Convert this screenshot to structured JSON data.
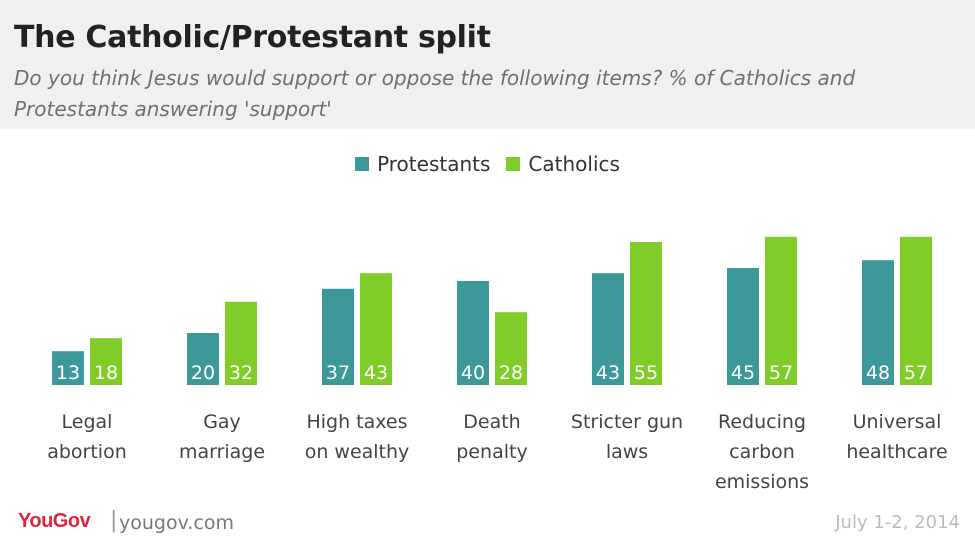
{
  "chart_data": {
    "type": "bar",
    "title": "The Catholic/Protestant split",
    "subtitle": "Do you think Jesus would support or oppose the following items? % of Catholics and Protestants answering 'support'",
    "categories": [
      [
        "Legal",
        "abortion"
      ],
      [
        "Gay",
        "marriage"
      ],
      [
        "High taxes",
        "on wealthy"
      ],
      [
        "Death",
        "penalty"
      ],
      [
        "Stricter gun",
        "laws"
      ],
      [
        "Reducing",
        "carbon",
        "emissions"
      ],
      [
        "Universal",
        "healthcare"
      ]
    ],
    "series": [
      {
        "name": "Protestants",
        "color": "#3d9899",
        "values": [
          13,
          20,
          37,
          40,
          43,
          45,
          48
        ]
      },
      {
        "name": "Catholics",
        "color": "#80cc28",
        "values": [
          18,
          32,
          43,
          28,
          55,
          57,
          57
        ]
      }
    ],
    "ylim": [
      0,
      57
    ],
    "legend": "top-center",
    "grid": false
  },
  "footer": {
    "brand": "YouGov",
    "separator": "|",
    "url": "yougov.com",
    "date": "July 1-2, 2014"
  }
}
